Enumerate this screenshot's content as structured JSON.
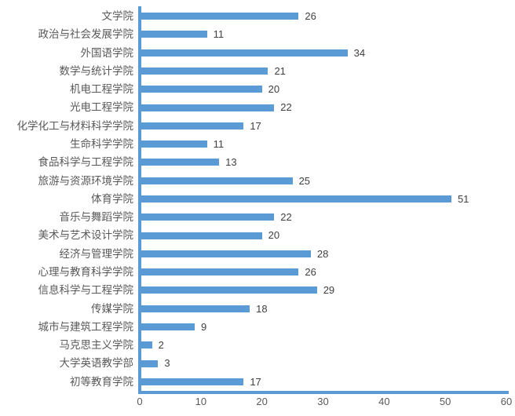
{
  "chart_data": {
    "type": "bar",
    "orientation": "horizontal",
    "title": "",
    "xlabel": "",
    "ylabel": "",
    "categories": [
      "文学院",
      "政治与社会发展学院",
      "外国语学院",
      "数学与统计学院",
      "机电工程学院",
      "光电工程学院",
      "化学化工与材料科学学院",
      "生命科学学院",
      "食品科学与工程学院",
      "旅游与资源环境学院",
      "体育学院",
      "音乐与舞蹈学院",
      "美术与艺术设计学院",
      "经济与管理学院",
      "心理与教育科学学院",
      "信息科学与工程学院",
      "传媒学院",
      "城市与建筑工程学院",
      "马克思主义学院",
      "大学英语教学部",
      "初等教育学院"
    ],
    "values": [
      26,
      11,
      34,
      21,
      20,
      22,
      17,
      11,
      13,
      25,
      51,
      22,
      20,
      28,
      26,
      29,
      18,
      9,
      2,
      3,
      17
    ],
    "data_labels": true,
    "xlim": [
      0,
      60
    ],
    "x_ticks": [
      "0",
      "10",
      "20",
      "30",
      "40",
      "50",
      "60"
    ],
    "grid": false,
    "legend": "none",
    "colors": {
      "bar": "#5B9BD5",
      "axis_line": "#5B9BD5",
      "category_label": "#595959",
      "value_label": "#404040",
      "tick_label": "#595959",
      "background": "#ffffff"
    }
  }
}
